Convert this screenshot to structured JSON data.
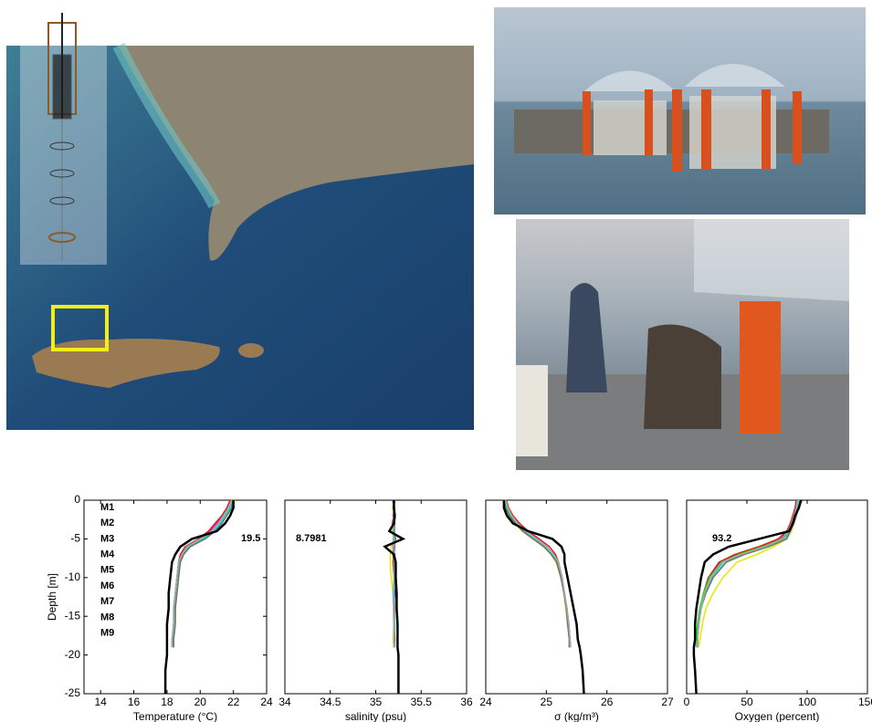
{
  "chart_data": [
    {
      "type": "line",
      "xlabel": "Temperature (°C)",
      "ylabel": "Depth [m]",
      "annotation": "19.5",
      "legend": true,
      "xlim": [
        13,
        24
      ],
      "xticks": [
        14,
        16,
        18,
        20,
        22,
        24
      ],
      "ylim": [
        -25,
        0
      ],
      "yticks": [
        0,
        -5,
        -10,
        -15,
        -20,
        -25
      ],
      "y": [
        0,
        -1,
        -2,
        -3,
        -4,
        -5,
        -6,
        -7,
        -8,
        -10,
        -12,
        -14,
        -16,
        -18,
        -19,
        -20,
        -22,
        -25
      ],
      "series": [
        {
          "name": "M1",
          "color": "#e21ee2",
          "x": [
            21.9,
            21.7,
            21.4,
            21.0,
            20.6,
            20.0,
            19.2,
            18.9,
            18.7,
            18.6,
            18.5,
            18.5,
            18.4,
            18.4,
            18.4,
            null,
            null,
            null
          ]
        },
        {
          "name": "M2",
          "color": "#1414e6",
          "x": [
            22.0,
            21.8,
            21.5,
            21.1,
            20.7,
            20.1,
            19.3,
            18.9,
            18.7,
            18.6,
            18.5,
            18.4,
            18.4,
            18.3,
            18.3,
            null,
            null,
            null
          ]
        },
        {
          "name": "M3",
          "color": "#e61414",
          "x": [
            21.8,
            21.6,
            21.3,
            20.9,
            20.5,
            19.9,
            19.1,
            18.8,
            18.7,
            18.6,
            18.5,
            18.5,
            18.4,
            18.4,
            18.4,
            null,
            null,
            null
          ]
        },
        {
          "name": "M4",
          "color": "#e6e600",
          "x": [
            22.1,
            21.9,
            21.6,
            21.2,
            20.8,
            20.2,
            19.4,
            19.0,
            18.8,
            18.7,
            18.6,
            18.5,
            18.5,
            18.4,
            18.4,
            null,
            null,
            null
          ]
        },
        {
          "name": "M5",
          "color": "#14e614",
          "x": [
            22.0,
            21.7,
            21.4,
            21.1,
            20.7,
            20.1,
            19.3,
            18.9,
            18.7,
            18.6,
            18.5,
            18.4,
            18.4,
            18.4,
            18.3,
            null,
            null,
            null
          ]
        },
        {
          "name": "M6",
          "color": "#14e6e6",
          "x": [
            21.9,
            21.8,
            21.5,
            21.2,
            20.8,
            20.2,
            19.3,
            18.9,
            18.8,
            18.6,
            18.5,
            18.5,
            18.4,
            18.4,
            18.4,
            null,
            null,
            null
          ]
        },
        {
          "name": "M7",
          "color": "#707070",
          "x": [
            22.0,
            21.9,
            21.6,
            21.3,
            20.9,
            20.3,
            19.4,
            19.0,
            18.8,
            18.7,
            18.6,
            18.5,
            18.5,
            18.4,
            18.4,
            null,
            null,
            null
          ]
        },
        {
          "name": "M8",
          "color": "#a8a8a8",
          "x": [
            21.9,
            21.7,
            21.4,
            21.1,
            20.7,
            20.0,
            19.2,
            18.9,
            18.7,
            18.6,
            18.5,
            18.4,
            18.4,
            18.3,
            18.3,
            null,
            null,
            null
          ]
        },
        {
          "name": "M9",
          "color": "#000000",
          "x": [
            22.0,
            22.0,
            21.8,
            21.5,
            21.0,
            19.5,
            18.8,
            18.5,
            18.3,
            18.2,
            18.1,
            18.1,
            18.0,
            18.0,
            18.0,
            18.0,
            17.9,
            17.9
          ]
        }
      ]
    },
    {
      "type": "line",
      "xlabel": "salinity (psu)",
      "annotation": "8.7981",
      "xlim": [
        34,
        36
      ],
      "xticks": [
        34,
        34.5,
        35,
        35.5,
        36
      ],
      "ylim": [
        -25,
        0
      ],
      "y": [
        0,
        -1,
        -2,
        -3,
        -4,
        -5,
        -6,
        -7,
        -8,
        -10,
        -12,
        -14,
        -16,
        -18,
        -19,
        -20,
        -22,
        -25
      ],
      "series": [
        {
          "color": "#e21ee2",
          "x": [
            35.2,
            35.19,
            35.2,
            35.18,
            35.2,
            35.22,
            35.19,
            35.2,
            35.2,
            35.21,
            35.2,
            35.21,
            35.2,
            35.2,
            35.2,
            null,
            null,
            null
          ]
        },
        {
          "color": "#1414e6",
          "x": [
            35.19,
            35.2,
            35.21,
            35.2,
            35.19,
            35.21,
            35.2,
            35.19,
            35.2,
            35.2,
            35.21,
            35.2,
            35.2,
            35.21,
            35.2,
            null,
            null,
            null
          ]
        },
        {
          "color": "#e61414",
          "x": [
            35.2,
            35.2,
            35.19,
            35.21,
            35.2,
            35.2,
            35.21,
            35.2,
            35.19,
            35.2,
            35.2,
            35.2,
            35.21,
            35.2,
            35.2,
            null,
            null,
            null
          ]
        },
        {
          "color": "#e6e600",
          "x": [
            35.2,
            35.19,
            35.2,
            35.2,
            35.18,
            35.2,
            35.17,
            35.16,
            35.16,
            35.17,
            35.19,
            35.2,
            35.2,
            35.19,
            35.2,
            null,
            null,
            null
          ]
        },
        {
          "color": "#14e614",
          "x": [
            35.21,
            35.2,
            35.2,
            35.19,
            35.2,
            35.21,
            35.2,
            35.2,
            35.21,
            35.2,
            35.2,
            35.2,
            35.2,
            35.2,
            35.21,
            null,
            null,
            null
          ]
        },
        {
          "color": "#14e6e6",
          "x": [
            35.2,
            35.21,
            35.2,
            35.2,
            35.21,
            35.19,
            35.2,
            35.21,
            35.2,
            35.2,
            35.19,
            35.2,
            35.21,
            35.2,
            35.2,
            null,
            null,
            null
          ]
        },
        {
          "color": "#707070",
          "x": [
            35.19,
            35.2,
            35.2,
            35.21,
            35.2,
            35.2,
            35.21,
            35.2,
            35.2,
            35.21,
            35.2,
            35.2,
            35.2,
            35.21,
            35.2,
            null,
            null,
            null
          ]
        },
        {
          "color": "#a8a8a8",
          "x": [
            35.2,
            35.2,
            35.21,
            35.2,
            35.19,
            35.2,
            35.2,
            35.2,
            35.21,
            35.2,
            35.2,
            35.21,
            35.2,
            35.2,
            35.2,
            null,
            null,
            null
          ]
        },
        {
          "color": "#000000",
          "x": [
            35.2,
            35.2,
            35.21,
            35.2,
            35.15,
            35.3,
            35.1,
            35.2,
            35.22,
            35.22,
            35.23,
            35.23,
            35.24,
            35.24,
            35.24,
            35.25,
            35.25,
            35.25
          ]
        }
      ]
    },
    {
      "type": "line",
      "xlabel": "σ (kg/m³)",
      "xlim": [
        24,
        27
      ],
      "xticks": [
        24,
        25,
        26,
        27
      ],
      "ylim": [
        -25,
        0
      ],
      "y": [
        0,
        -1,
        -2,
        -3,
        -4,
        -5,
        -6,
        -7,
        -8,
        -10,
        -12,
        -14,
        -16,
        -18,
        -19,
        -20,
        -22,
        -25
      ],
      "series": [
        {
          "color": "#e21ee2",
          "x": [
            24.32,
            24.36,
            24.42,
            24.52,
            24.64,
            24.82,
            25.0,
            25.12,
            25.2,
            25.26,
            25.3,
            25.33,
            25.36,
            25.38,
            25.38,
            null,
            null,
            null
          ]
        },
        {
          "color": "#1414e6",
          "x": [
            24.3,
            24.34,
            24.4,
            24.5,
            24.62,
            24.8,
            24.98,
            25.1,
            25.19,
            25.25,
            25.3,
            25.34,
            25.37,
            25.39,
            25.4,
            null,
            null,
            null
          ]
        },
        {
          "color": "#e61414",
          "x": [
            24.34,
            24.38,
            24.45,
            24.56,
            24.7,
            24.88,
            25.05,
            25.15,
            25.2,
            25.26,
            25.3,
            25.33,
            25.36,
            25.38,
            25.38,
            null,
            null,
            null
          ]
        },
        {
          "color": "#e6e600",
          "x": [
            24.28,
            24.32,
            24.38,
            24.48,
            24.6,
            24.78,
            24.95,
            25.08,
            25.16,
            25.24,
            25.29,
            25.32,
            25.35,
            25.38,
            25.38,
            null,
            null,
            null
          ]
        },
        {
          "color": "#14e614",
          "x": [
            24.31,
            24.35,
            24.41,
            24.51,
            24.63,
            24.81,
            24.99,
            25.11,
            25.19,
            25.25,
            25.3,
            25.34,
            25.36,
            25.38,
            25.39,
            null,
            null,
            null
          ]
        },
        {
          "color": "#14e6e6",
          "x": [
            24.32,
            24.36,
            24.42,
            24.52,
            24.64,
            24.8,
            24.98,
            25.1,
            25.18,
            25.25,
            25.3,
            25.33,
            25.36,
            25.38,
            25.38,
            null,
            null,
            null
          ]
        },
        {
          "color": "#707070",
          "x": [
            24.3,
            24.33,
            24.39,
            24.49,
            24.61,
            24.78,
            24.96,
            25.08,
            25.17,
            25.24,
            25.29,
            25.33,
            25.35,
            25.38,
            25.38,
            null,
            null,
            null
          ]
        },
        {
          "color": "#a8a8a8",
          "x": [
            24.33,
            24.37,
            24.43,
            24.53,
            24.66,
            24.84,
            25.01,
            25.12,
            25.2,
            25.26,
            25.3,
            25.34,
            25.37,
            25.39,
            25.4,
            null,
            null,
            null
          ]
        },
        {
          "color": "#000000",
          "x": [
            24.3,
            24.3,
            24.35,
            24.45,
            24.7,
            25.1,
            25.25,
            25.3,
            25.3,
            25.35,
            25.4,
            25.45,
            25.5,
            25.52,
            25.55,
            25.57,
            25.6,
            25.62
          ]
        }
      ]
    },
    {
      "type": "line",
      "xlabel": "Oxygen (percent)",
      "annotation": "93.2",
      "xlim": [
        0,
        150
      ],
      "xticks": [
        0,
        50,
        100,
        150
      ],
      "ylim": [
        -25,
        0
      ],
      "y": [
        0,
        -1,
        -2,
        -3,
        -4,
        -5,
        -6,
        -7,
        -8,
        -10,
        -12,
        -14,
        -16,
        -18,
        -19,
        -20,
        -22,
        -25
      ],
      "series": [
        {
          "color": "#e21ee2",
          "x": [
            92,
            91,
            89,
            87,
            84,
            78,
            62,
            42,
            28,
            18,
            14,
            11,
            9,
            8,
            8,
            null,
            null,
            null
          ]
        },
        {
          "color": "#1414e6",
          "x": [
            93,
            92,
            90,
            88,
            85,
            80,
            64,
            44,
            30,
            20,
            15,
            12,
            10,
            9,
            9,
            null,
            null,
            null
          ]
        },
        {
          "color": "#e61414",
          "x": [
            91,
            90,
            88,
            86,
            83,
            76,
            60,
            40,
            27,
            18,
            14,
            12,
            10,
            9,
            9,
            null,
            null,
            null
          ]
        },
        {
          "color": "#e6e600",
          "x": [
            94,
            93,
            91,
            89,
            87,
            83,
            72,
            58,
            42,
            30,
            22,
            16,
            13,
            11,
            10,
            null,
            null,
            null
          ]
        },
        {
          "color": "#14e614",
          "x": [
            92,
            91,
            89,
            87,
            84,
            79,
            63,
            43,
            29,
            19,
            14,
            11,
            9,
            8,
            8,
            null,
            null,
            null
          ]
        },
        {
          "color": "#14e6e6",
          "x": [
            93,
            92,
            90,
            88,
            85,
            82,
            66,
            46,
            31,
            21,
            15,
            12,
            10,
            9,
            8,
            null,
            null,
            null
          ]
        },
        {
          "color": "#707070",
          "x": [
            94,
            93,
            91,
            89,
            86,
            83,
            68,
            48,
            33,
            22,
            16,
            12,
            10,
            9,
            9,
            null,
            null,
            null
          ]
        },
        {
          "color": "#a8a8a8",
          "x": [
            92,
            91,
            89,
            87,
            84,
            80,
            65,
            45,
            30,
            20,
            15,
            12,
            10,
            9,
            9,
            null,
            null,
            null
          ]
        },
        {
          "color": "#000000",
          "x": [
            95,
            93,
            90,
            88,
            85,
            60,
            35,
            22,
            15,
            12,
            10,
            8,
            7,
            7,
            6,
            6,
            7,
            8
          ]
        }
      ]
    }
  ]
}
